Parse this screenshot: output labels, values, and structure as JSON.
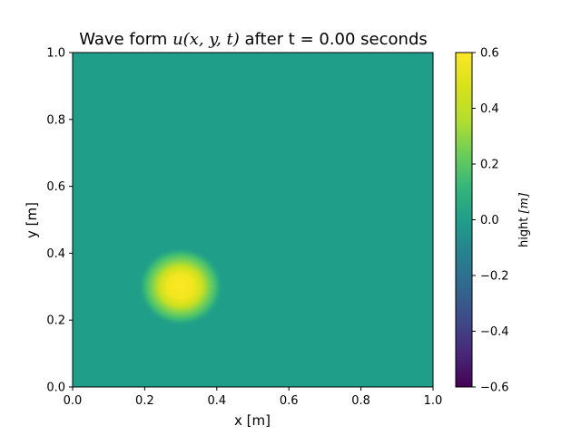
{
  "chart_data": {
    "type": "heatmap",
    "title": {
      "prefix": "Wave form ",
      "math": "u(x, y, t)",
      "suffix": " after t = 0.00 seconds"
    },
    "xlabel": "x [m]",
    "ylabel": "y [m]",
    "xlim": [
      0.0,
      1.0
    ],
    "ylim": [
      0.0,
      1.0
    ],
    "x_ticks": [
      "0.0",
      "0.2",
      "0.4",
      "0.6",
      "0.8",
      "1.0"
    ],
    "y_ticks": [
      "0.0",
      "0.2",
      "0.4",
      "0.6",
      "0.8",
      "1.0"
    ],
    "colormap": "viridis",
    "field": {
      "background_value": 0.0,
      "peak_value": 0.6,
      "peak_center": [
        0.3,
        0.3
      ],
      "peak_radius": 0.06
    },
    "colorbar": {
      "label_prefix": "hight ",
      "label_math": "[m]",
      "range": [
        -0.6,
        0.6
      ],
      "ticks": [
        "−0.6",
        "−0.4",
        "−0.2",
        "0.0",
        "0.2",
        "0.4",
        "0.6"
      ]
    },
    "grid": false
  }
}
